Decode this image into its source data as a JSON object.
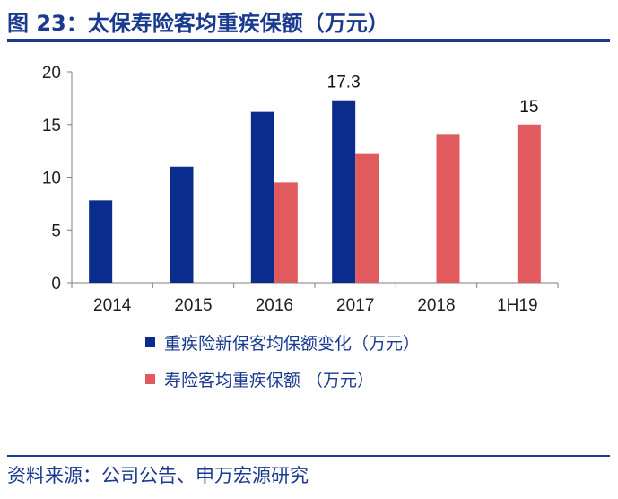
{
  "header": {
    "title": "图 23：太保寿险客均重疾保额（万元）"
  },
  "footer": {
    "source": "资料来源：公司公告、申万宏源研究"
  },
  "colors": {
    "accent": "#1a3a8f",
    "series1": "#0a2c8c",
    "series2": "#e05a5e"
  },
  "chart_data": {
    "type": "bar",
    "title": "",
    "xlabel": "",
    "ylabel": "",
    "categories": [
      "2014",
      "2015",
      "2016",
      "2017",
      "2018",
      "1H19"
    ],
    "ylim": [
      0,
      20
    ],
    "yticks": [
      "0",
      "5",
      "10",
      "15",
      "20"
    ],
    "grid": false,
    "legend_position": "bottom",
    "series": [
      {
        "name": "重疾险新保客均保额变化（万元）",
        "color": "#0a2c8c",
        "values": [
          7.8,
          11.0,
          16.2,
          17.3,
          null,
          null
        ]
      },
      {
        "name": "寿险客均重疾保额 （万元）",
        "color": "#e05a5e",
        "values": [
          null,
          null,
          9.5,
          12.2,
          14.1,
          15.0
        ]
      }
    ],
    "data_labels": [
      {
        "series": 0,
        "index": 3,
        "text": "17.3"
      },
      {
        "series": 1,
        "index": 5,
        "text": "15"
      }
    ]
  }
}
